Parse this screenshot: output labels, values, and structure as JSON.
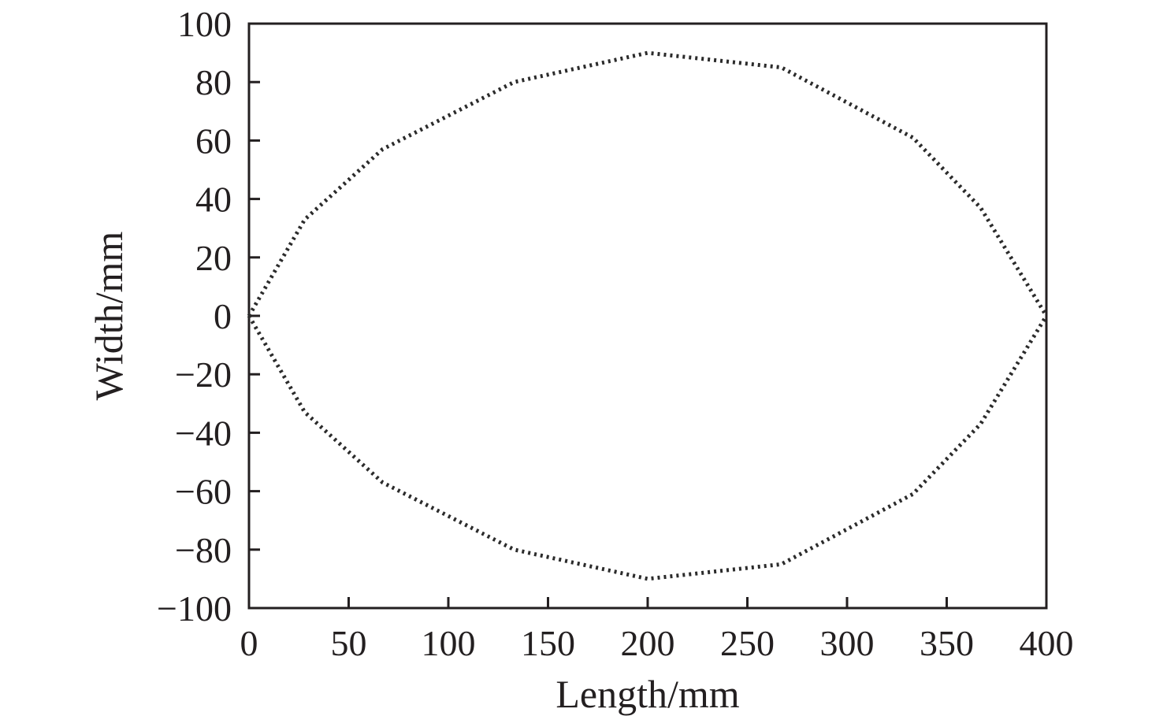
{
  "chart_data": {
    "type": "line",
    "title": "",
    "xlabel": "Length/mm",
    "ylabel": "Width/mm",
    "xlim": [
      0,
      400
    ],
    "ylim": [
      -100,
      100
    ],
    "xticks": [
      0,
      50,
      100,
      150,
      200,
      250,
      300,
      350,
      400
    ],
    "yticks": [
      100,
      80,
      60,
      40,
      20,
      0,
      -20,
      -40,
      -60,
      -80,
      -100
    ],
    "xtick_labels": [
      "0",
      "50",
      "100",
      "150",
      "200",
      "250",
      "300",
      "350",
      "400"
    ],
    "ytick_labels": [
      "100",
      "80",
      "60",
      "40",
      "20",
      "0",
      "−20",
      "−40",
      "−60",
      "−80",
      "−100"
    ],
    "grid": false,
    "legend": "none",
    "line_style": "dotted",
    "line_color": "#2b2b2b",
    "series": [
      {
        "x": [
          0,
          28,
          67,
          133,
          200,
          267,
          333,
          367,
          400
        ],
        "y": [
          0,
          33,
          57,
          80,
          90,
          85,
          61,
          37,
          0
        ]
      },
      {
        "x": [
          0,
          28,
          67,
          133,
          200,
          267,
          333,
          367,
          400
        ],
        "y": [
          0,
          -33,
          -57,
          -80,
          -90,
          -85,
          -61,
          -37,
          0
        ]
      }
    ]
  }
}
